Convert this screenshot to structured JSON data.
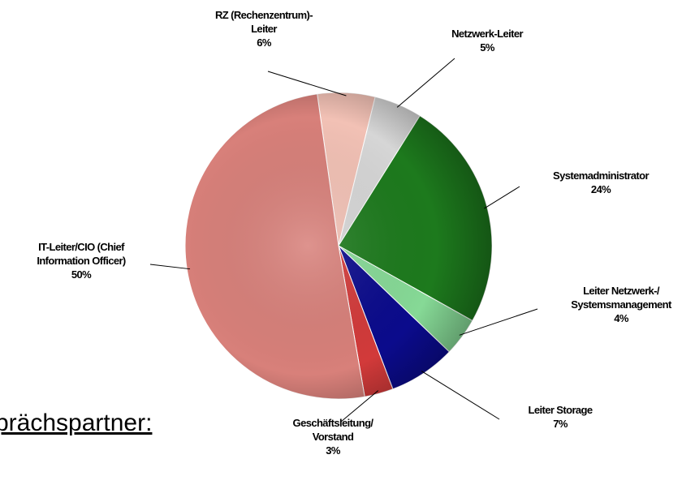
{
  "background_text": "prächspartner:",
  "chart_data": {
    "type": "pie",
    "categories": [
      "RZ (Rechenzentrum)-\nLeiter",
      "Netzwerk-Leiter",
      "Systemadministrator",
      "Leiter Netzwerk-/\nSystemsmanagement",
      "Leiter Storage",
      "Geschäftsleitung/\nVorstand",
      "IT-Leiter/CIO (Chief\nInformation Officer)"
    ],
    "values": [
      6,
      5,
      24,
      4,
      7,
      3,
      50
    ],
    "value_labels": [
      "6%",
      "5%",
      "24%",
      "4%",
      "7%",
      "3%",
      "50%"
    ],
    "colors": [
      "#f2c1b5",
      "#d6d6d6",
      "#1d7a1d",
      "#86d996",
      "#0b0b8c",
      "#d23a3a",
      "#d8807a"
    ]
  }
}
